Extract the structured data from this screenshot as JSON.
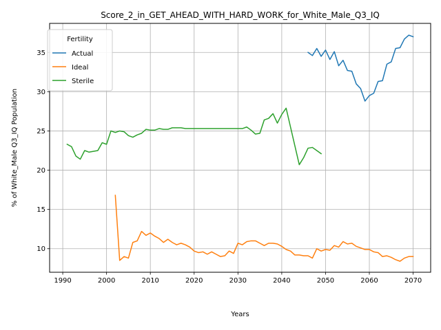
{
  "chart_data": {
    "type": "line",
    "title": "Score_2_in_GET_AHEAD_WITH_HARD_WORK_for_White_Male_Q3_IQ",
    "xlabel": "Years",
    "ylabel": "% of White_Male Q3_IQ Population",
    "xlim": [
      1987,
      2074
    ],
    "ylim": [
      7,
      38.7
    ],
    "xticks": [
      1990,
      2000,
      2010,
      2020,
      2030,
      2040,
      2050,
      2060,
      2070
    ],
    "yticks": [
      10,
      15,
      20,
      25,
      30,
      35
    ],
    "grid": true,
    "legend": {
      "title": "Fertility",
      "placement": "top-left"
    },
    "series": [
      {
        "name": "Actual",
        "color": "#1f77b4",
        "x": [
          2046,
          2047,
          2048,
          2049,
          2050,
          2051,
          2052,
          2053,
          2054,
          2055,
          2056,
          2057,
          2058,
          2059,
          2060,
          2061,
          2062,
          2063,
          2064,
          2065,
          2066,
          2067,
          2068,
          2069,
          2070
        ],
        "y": [
          35.0,
          34.6,
          35.5,
          34.5,
          35.3,
          34.1,
          35.1,
          33.3,
          34.0,
          32.7,
          32.6,
          31.0,
          30.4,
          28.8,
          29.5,
          29.8,
          31.3,
          31.4,
          33.5,
          33.8,
          35.5,
          35.6,
          36.7,
          37.2,
          37.0
        ]
      },
      {
        "name": "Ideal",
        "color": "#ff7f0e",
        "x": [
          2002,
          2003,
          2004,
          2005,
          2006,
          2007,
          2008,
          2009,
          2010,
          2011,
          2012,
          2013,
          2014,
          2015,
          2016,
          2017,
          2018,
          2019,
          2020,
          2021,
          2022,
          2023,
          2024,
          2025,
          2026,
          2027,
          2028,
          2029,
          2030,
          2031,
          2032,
          2033,
          2034,
          2035,
          2036,
          2037,
          2038,
          2039,
          2040,
          2041,
          2042,
          2043,
          2044,
          2045,
          2046,
          2047,
          2048,
          2049,
          2050,
          2051,
          2052,
          2053,
          2054,
          2055,
          2056,
          2057,
          2058,
          2059,
          2060,
          2061,
          2062,
          2063,
          2064,
          2065,
          2066,
          2067,
          2068,
          2069,
          2070
        ],
        "y": [
          16.8,
          8.5,
          9.0,
          8.8,
          10.8,
          11.0,
          12.2,
          11.7,
          12.0,
          11.6,
          11.3,
          10.8,
          11.2,
          10.8,
          10.5,
          10.7,
          10.5,
          10.2,
          9.7,
          9.5,
          9.6,
          9.3,
          9.6,
          9.3,
          9.0,
          9.1,
          9.7,
          9.4,
          10.7,
          10.5,
          10.9,
          11.0,
          11.0,
          10.7,
          10.4,
          10.7,
          10.7,
          10.6,
          10.3,
          9.9,
          9.7,
          9.2,
          9.2,
          9.1,
          9.1,
          8.8,
          10.0,
          9.7,
          9.9,
          9.8,
          10.4,
          10.2,
          10.9,
          10.6,
          10.7,
          10.3,
          10.1,
          9.9,
          9.9,
          9.6,
          9.5,
          9.0,
          9.1,
          8.9,
          8.6,
          8.4,
          8.8,
          9.0,
          9.0
        ]
      },
      {
        "name": "Sterile",
        "color": "#2ca02c",
        "x": [
          1991,
          1992,
          1993,
          1994,
          1995,
          1996,
          1997,
          1998,
          1999,
          2000,
          2001,
          2002,
          2003,
          2004,
          2005,
          2006,
          2007,
          2008,
          2009,
          2010,
          2011,
          2012,
          2013,
          2014,
          2015,
          2016,
          2017,
          2018,
          2019,
          2020,
          2021,
          2022,
          2023,
          2024,
          2025,
          2026,
          2027,
          2028,
          2029,
          2030,
          2031,
          2032,
          2033,
          2034,
          2035,
          2036,
          2037,
          2038,
          2039,
          2040,
          2041,
          2042,
          2043,
          2044,
          2045,
          2046,
          2047,
          2048,
          2049
        ],
        "y": [
          23.3,
          23.0,
          21.8,
          21.4,
          22.5,
          22.3,
          22.4,
          22.5,
          23.5,
          23.3,
          25.0,
          24.8,
          25.0,
          24.9,
          24.4,
          24.2,
          24.5,
          24.7,
          25.2,
          25.1,
          25.1,
          25.3,
          25.2,
          25.2,
          25.4,
          25.4,
          25.4,
          25.3,
          25.3,
          25.3,
          25.3,
          25.3,
          25.3,
          25.3,
          25.3,
          25.3,
          25.3,
          25.3,
          25.3,
          25.3,
          25.3,
          25.5,
          25.1,
          24.6,
          24.7,
          26.4,
          26.6,
          27.2,
          26.0,
          27.1,
          27.9,
          25.5,
          23.1,
          20.7,
          21.6,
          22.8,
          22.9,
          22.5,
          22.1
        ]
      }
    ]
  }
}
